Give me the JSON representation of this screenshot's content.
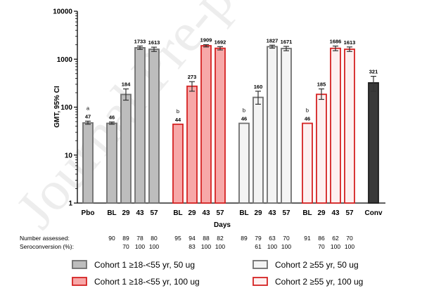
{
  "watermark": "Journal Pre-proof",
  "chart_data": {
    "type": "bar",
    "title": "",
    "ylabel": "GMT, 95% CI",
    "xlabel": "Days",
    "yscale": "log",
    "ylim": [
      1,
      10000
    ],
    "yticks": [
      "1",
      "10",
      "100",
      "1000",
      "10000"
    ],
    "groups": [
      {
        "name": "",
        "bars": [
          {
            "x": "Pbo",
            "value": 47,
            "ci": [
              44,
              51
            ],
            "style": "cohort1_50",
            "label": "47",
            "annotation": "a"
          }
        ]
      },
      {
        "name": "",
        "bars": [
          {
            "x": "BL",
            "value": 46,
            "ci": [
              44,
              49
            ],
            "style": "cohort1_50",
            "label": "46"
          },
          {
            "x": "29",
            "value": 184,
            "ci": [
              140,
              240
            ],
            "style": "cohort1_50",
            "label": "184"
          },
          {
            "x": "43",
            "value": 1733,
            "ci": [
              1600,
              1880
            ],
            "style": "cohort1_50",
            "label": "1733"
          },
          {
            "x": "57",
            "value": 1613,
            "ci": [
              1450,
              1780
            ],
            "style": "cohort1_50",
            "label": "1613"
          }
        ]
      },
      {
        "name": "",
        "bars": [
          {
            "x": "BL",
            "value": 44,
            "ci": [
              44,
              44
            ],
            "style": "cohort1_100",
            "label": "44",
            "annotation": "b"
          },
          {
            "x": "29",
            "value": 273,
            "ci": [
              215,
              340
            ],
            "style": "cohort1_100",
            "label": "273"
          },
          {
            "x": "43",
            "value": 1909,
            "ci": [
              1800,
              2010
            ],
            "style": "cohort1_100",
            "label": "1909"
          },
          {
            "x": "57",
            "value": 1692,
            "ci": [
              1560,
              1830
            ],
            "style": "cohort1_100",
            "label": "1692"
          }
        ]
      },
      {
        "name": "",
        "bars": [
          {
            "x": "BL",
            "value": 46,
            "ci": [
              46,
              46
            ],
            "style": "cohort2_50",
            "label": "46",
            "annotation": "b"
          },
          {
            "x": "29",
            "value": 160,
            "ci": [
              115,
              215
            ],
            "style": "cohort2_50",
            "label": "160"
          },
          {
            "x": "43",
            "value": 1827,
            "ci": [
              1700,
              1960
            ],
            "style": "cohort2_50",
            "label": "1827"
          },
          {
            "x": "57",
            "value": 1671,
            "ci": [
              1500,
              1850
            ],
            "style": "cohort2_50",
            "label": "1671"
          }
        ]
      },
      {
        "name": "",
        "bars": [
          {
            "x": "BL",
            "value": 46,
            "ci": [
              46,
              46
            ],
            "style": "cohort2_100",
            "label": "46",
            "annotation": "b"
          },
          {
            "x": "29",
            "value": 185,
            "ci": [
              145,
              240
            ],
            "style": "cohort2_100",
            "label": "185"
          },
          {
            "x": "43",
            "value": 1686,
            "ci": [
              1500,
              1880
            ],
            "style": "cohort2_100",
            "label": "1686"
          },
          {
            "x": "57",
            "value": 1613,
            "ci": [
              1450,
              1800
            ],
            "style": "cohort2_100",
            "label": "1613"
          }
        ]
      },
      {
        "name": "",
        "bars": [
          {
            "x": "Conv",
            "value": 321,
            "ci": [
              215,
              440
            ],
            "style": "conv",
            "label": "321"
          }
        ]
      }
    ],
    "styles": {
      "cohort1_50": {
        "fill": "#bdbdbd",
        "stroke": "#6f6f6f"
      },
      "cohort1_100": {
        "fill": "#f7a8a8",
        "stroke": "#d42222"
      },
      "cohort2_50": {
        "fill": "#f4f4f4",
        "stroke": "#6f6f6f"
      },
      "cohort2_100": {
        "fill": "#fdf0f0",
        "stroke": "#d42222"
      },
      "conv": {
        "fill": "#3a3a3a",
        "stroke": "#1e1e1e"
      }
    },
    "table": {
      "rows": [
        {
          "label": "Number assessed:",
          "values": [
            "",
            "90",
            "89",
            "78",
            "80",
            "95",
            "94",
            "88",
            "82",
            "89",
            "79",
            "63",
            "70",
            "91",
            "86",
            "62",
            "70",
            ""
          ]
        },
        {
          "label": "Seroconversion (%):",
          "values": [
            "",
            "",
            "70",
            "100",
            "100",
            "",
            "83",
            "100",
            "100",
            "",
            "61",
            "100",
            "100",
            "",
            "70",
            "100",
            "100",
            ""
          ]
        }
      ]
    },
    "legend": [
      {
        "label": "Cohort 1 ≥18-<55 yr, 50 ug",
        "style": "cohort1_50"
      },
      {
        "label": "Cohort 2 ≥55 yr, 50 ug",
        "style": "cohort2_50"
      },
      {
        "label": "Cohort 1 ≥18-<55 yr, 100 ug",
        "style": "cohort1_100"
      },
      {
        "label": "Cohort 2 ≥55 yr, 100 ug",
        "style": "cohort2_100"
      }
    ],
    "legend_position": "bottom"
  }
}
